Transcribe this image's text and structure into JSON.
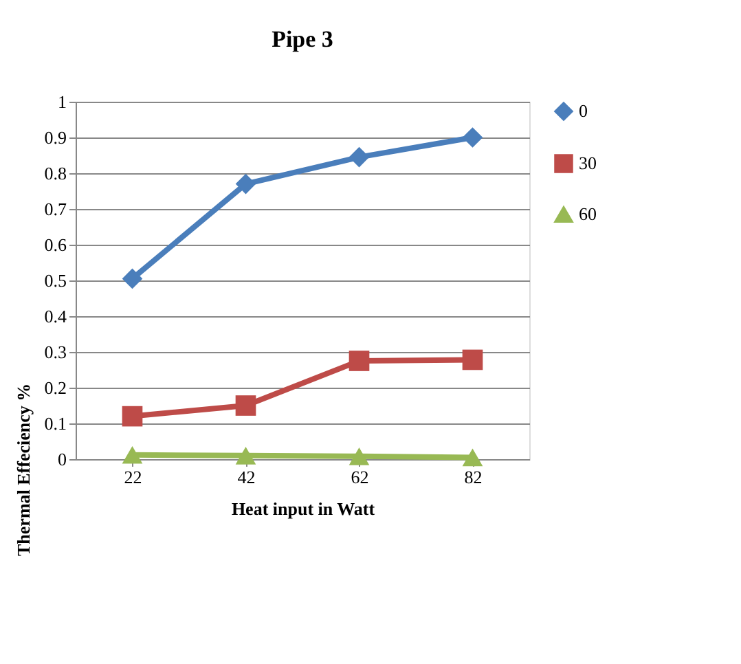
{
  "chart_data": {
    "type": "line",
    "title": "Pipe 3",
    "xlabel": "Heat input in Watt",
    "ylabel": "Thermal Effeciency %",
    "categories": [
      "22",
      "42",
      "62",
      "82"
    ],
    "series": [
      {
        "name": "0",
        "color": "#4a7ebb",
        "marker": "diamond",
        "values": [
          0.505,
          0.77,
          0.845,
          0.9
        ]
      },
      {
        "name": "30",
        "color": "#be4b48",
        "marker": "square",
        "values": [
          0.12,
          0.15,
          0.275,
          0.278
        ]
      },
      {
        "name": "60",
        "color": "#98b954",
        "marker": "triangle",
        "values": [
          0.012,
          0.01,
          0.008,
          0.005
        ]
      }
    ],
    "ylim": [
      0,
      1
    ],
    "yticks": [
      0,
      0.1,
      0.2,
      0.3,
      0.4,
      0.5,
      0.6,
      0.7,
      0.8,
      0.9,
      1
    ],
    "grid": "y",
    "legend": "right",
    "line_style": "solid"
  }
}
